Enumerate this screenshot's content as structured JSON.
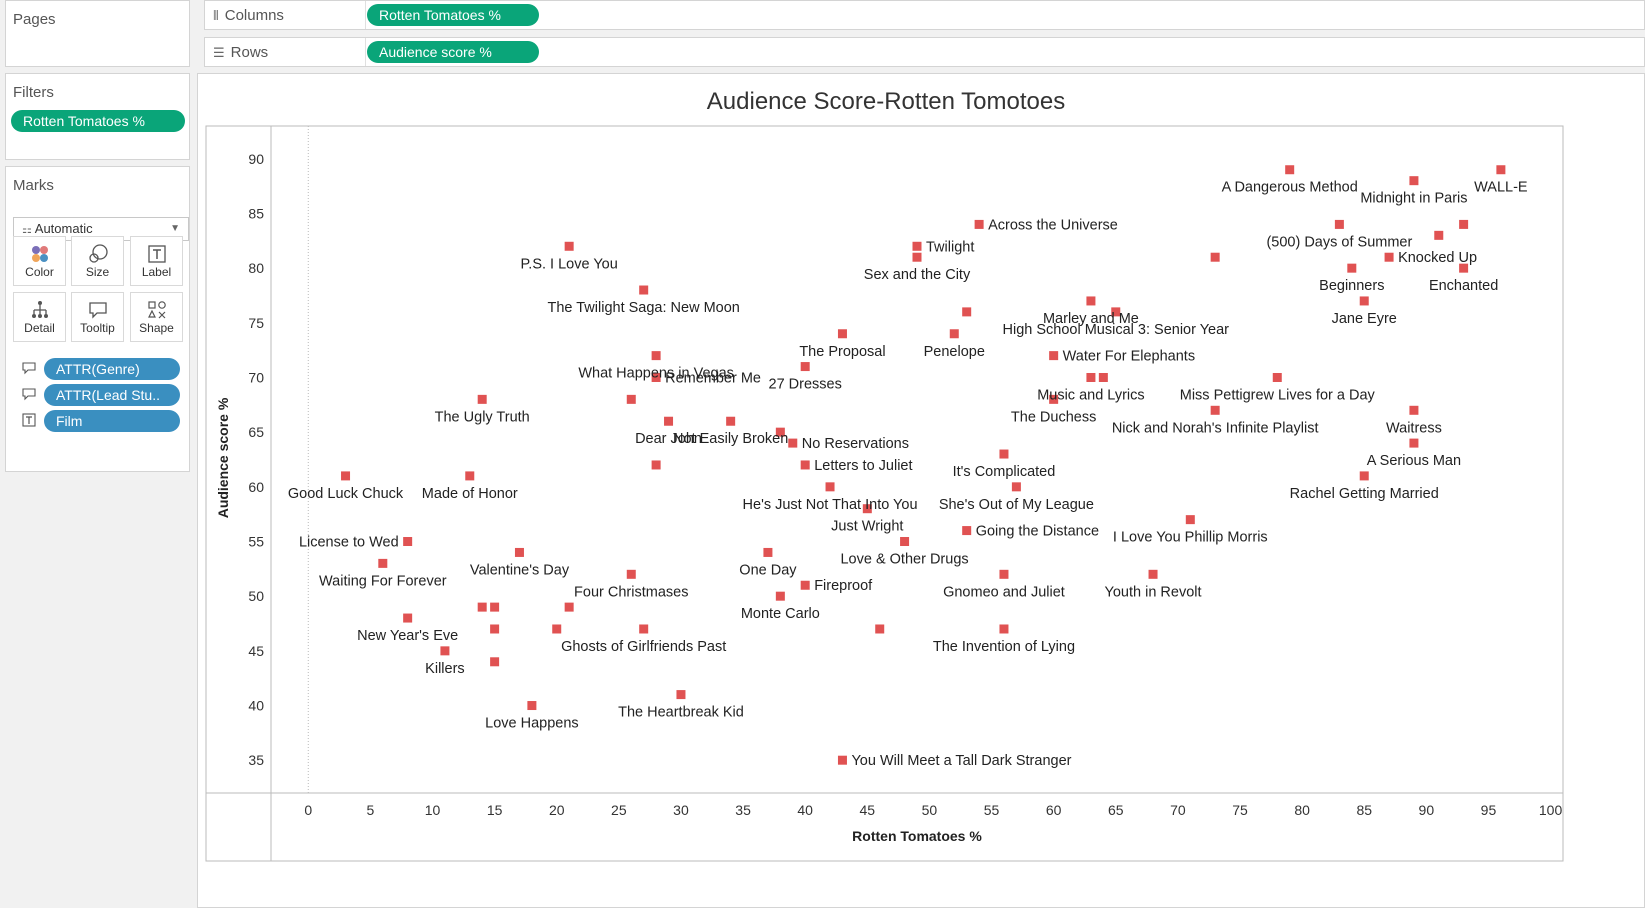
{
  "left_panel": {
    "pages": {
      "title": "Pages"
    },
    "filters": {
      "title": "Filters",
      "pills": [
        "Rotten Tomatoes %"
      ]
    },
    "marks": {
      "title": "Marks",
      "mark_type": "Automatic",
      "buttons": [
        "Color",
        "Size",
        "Label",
        "Detail",
        "Tooltip",
        "Shape"
      ],
      "fields": [
        {
          "label": "ATTR(Genre)",
          "icon": "tooltip-icon"
        },
        {
          "label": "ATTR(Lead Stu..",
          "icon": "tooltip-icon"
        },
        {
          "label": "Film",
          "icon": "label-icon"
        }
      ]
    }
  },
  "shelves": {
    "columns": {
      "label": "Columns",
      "pill": "Rotten Tomatoes %"
    },
    "rows": {
      "label": "Rows",
      "pill": "Audience  score %"
    }
  },
  "colors": {
    "mark": "#e05252",
    "pill_green": "#0aa579",
    "pill_blue": "#3a8fc0"
  },
  "chart_data": {
    "type": "scatter",
    "title": "Audience Score-Rotten Tomotoes",
    "xlabel": "Rotten Tomatoes %",
    "ylabel": "Audience  score %",
    "xlim": [
      -3,
      101
    ],
    "ylim": [
      32,
      93
    ],
    "xticks": [
      0,
      5,
      10,
      15,
      20,
      25,
      30,
      35,
      40,
      45,
      50,
      55,
      60,
      65,
      70,
      75,
      80,
      85,
      90,
      95,
      100
    ],
    "yticks": [
      35,
      40,
      45,
      50,
      55,
      60,
      65,
      70,
      75,
      80,
      85,
      90
    ],
    "grid": false,
    "points": [
      {
        "x": 79,
        "y": 89,
        "label": "A Dangerous Method"
      },
      {
        "x": 96,
        "y": 89,
        "label": "WALL-E"
      },
      {
        "x": 89,
        "y": 88,
        "label": "Midnight in Paris"
      },
      {
        "x": 83,
        "y": 84,
        "label": "(500) Days of Summer"
      },
      {
        "x": 93,
        "y": 84,
        "label": ""
      },
      {
        "x": 54,
        "y": 84,
        "label": "Across the Universe"
      },
      {
        "x": 91,
        "y": 83,
        "label": ""
      },
      {
        "x": 21,
        "y": 82,
        "label": "P.S. I Love You"
      },
      {
        "x": 49,
        "y": 82,
        "label": "Twilight"
      },
      {
        "x": 49,
        "y": 81,
        "label": "Sex and the City"
      },
      {
        "x": 73,
        "y": 81,
        "label": ""
      },
      {
        "x": 87,
        "y": 81,
        "label": "Knocked Up"
      },
      {
        "x": 84,
        "y": 80,
        "label": "Beginners"
      },
      {
        "x": 93,
        "y": 80,
        "label": "Enchanted"
      },
      {
        "x": 27,
        "y": 78,
        "label": "The Twilight Saga: New Moon"
      },
      {
        "x": 63,
        "y": 77,
        "label": "Marley and Me"
      },
      {
        "x": 85,
        "y": 77,
        "label": "Jane Eyre"
      },
      {
        "x": 53,
        "y": 76,
        "label": ""
      },
      {
        "x": 65,
        "y": 76,
        "label": "High School Musical 3: Senior Year"
      },
      {
        "x": 43,
        "y": 74,
        "label": "The Proposal"
      },
      {
        "x": 52,
        "y": 74,
        "label": "Penelope"
      },
      {
        "x": 28,
        "y": 72,
        "label": "What Happens in Vegas"
      },
      {
        "x": 60,
        "y": 72,
        "label": "Water For Elephants"
      },
      {
        "x": 40,
        "y": 71,
        "label": "27 Dresses"
      },
      {
        "x": 28,
        "y": 70,
        "label": "Remember Me"
      },
      {
        "x": 63,
        "y": 70,
        "label": "Music and Lyrics"
      },
      {
        "x": 64,
        "y": 70,
        "label": ""
      },
      {
        "x": 78,
        "y": 70,
        "label": "Miss Pettigrew Lives for a Day"
      },
      {
        "x": 14,
        "y": 68,
        "label": "The Ugly Truth"
      },
      {
        "x": 26,
        "y": 68,
        "label": ""
      },
      {
        "x": 60,
        "y": 68,
        "label": "The Duchess"
      },
      {
        "x": 73,
        "y": 67,
        "label": "Nick and Norah's Infinite Playlist"
      },
      {
        "x": 89,
        "y": 67,
        "label": "Waitress"
      },
      {
        "x": 29,
        "y": 66,
        "label": "Dear John"
      },
      {
        "x": 34,
        "y": 66,
        "label": "Not Easily Broken"
      },
      {
        "x": 38,
        "y": 65,
        "label": ""
      },
      {
        "x": 39,
        "y": 64,
        "label": "No Reservations"
      },
      {
        "x": 89,
        "y": 64,
        "label": "A Serious Man"
      },
      {
        "x": 56,
        "y": 63,
        "label": "It's Complicated"
      },
      {
        "x": 28,
        "y": 62,
        "label": ""
      },
      {
        "x": 40,
        "y": 62,
        "label": "Letters to Juliet"
      },
      {
        "x": 3,
        "y": 61,
        "label": "Good Luck Chuck"
      },
      {
        "x": 13,
        "y": 61,
        "label": "Made of Honor"
      },
      {
        "x": 85,
        "y": 61,
        "label": "Rachel Getting Married"
      },
      {
        "x": 42,
        "y": 60,
        "label": "He's Just Not That Into You"
      },
      {
        "x": 57,
        "y": 60,
        "label": "She's Out of My League"
      },
      {
        "x": 45,
        "y": 58,
        "label": "Just Wright"
      },
      {
        "x": 71,
        "y": 57,
        "label": "I Love You Phillip Morris"
      },
      {
        "x": 53,
        "y": 56,
        "label": "Going the Distance"
      },
      {
        "x": 8,
        "y": 55,
        "label": "License to Wed"
      },
      {
        "x": 48,
        "y": 55,
        "label": "Love & Other Drugs"
      },
      {
        "x": 17,
        "y": 54,
        "label": "Valentine's Day"
      },
      {
        "x": 37,
        "y": 54,
        "label": "One Day"
      },
      {
        "x": 6,
        "y": 53,
        "label": "Waiting For Forever"
      },
      {
        "x": 26,
        "y": 52,
        "label": "Four Christmases"
      },
      {
        "x": 56,
        "y": 52,
        "label": "Gnomeo and Juliet"
      },
      {
        "x": 68,
        "y": 52,
        "label": "Youth in Revolt"
      },
      {
        "x": 40,
        "y": 51,
        "label": "Fireproof"
      },
      {
        "x": 38,
        "y": 50,
        "label": "Monte Carlo"
      },
      {
        "x": 14,
        "y": 49,
        "label": ""
      },
      {
        "x": 15,
        "y": 49,
        "label": ""
      },
      {
        "x": 21,
        "y": 49,
        "label": ""
      },
      {
        "x": 8,
        "y": 48,
        "label": "New Year's Eve"
      },
      {
        "x": 15,
        "y": 47,
        "label": ""
      },
      {
        "x": 20,
        "y": 47,
        "label": ""
      },
      {
        "x": 27,
        "y": 47,
        "label": "Ghosts of Girlfriends Past"
      },
      {
        "x": 46,
        "y": 47,
        "label": ""
      },
      {
        "x": 56,
        "y": 47,
        "label": "The Invention of Lying"
      },
      {
        "x": 11,
        "y": 45,
        "label": "Killers"
      },
      {
        "x": 15,
        "y": 44,
        "label": ""
      },
      {
        "x": 30,
        "y": 41,
        "label": "The Heartbreak Kid"
      },
      {
        "x": 18,
        "y": 40,
        "label": "Love Happens"
      },
      {
        "x": 43,
        "y": 35,
        "label": "You Will Meet a Tall Dark Stranger"
      }
    ]
  }
}
